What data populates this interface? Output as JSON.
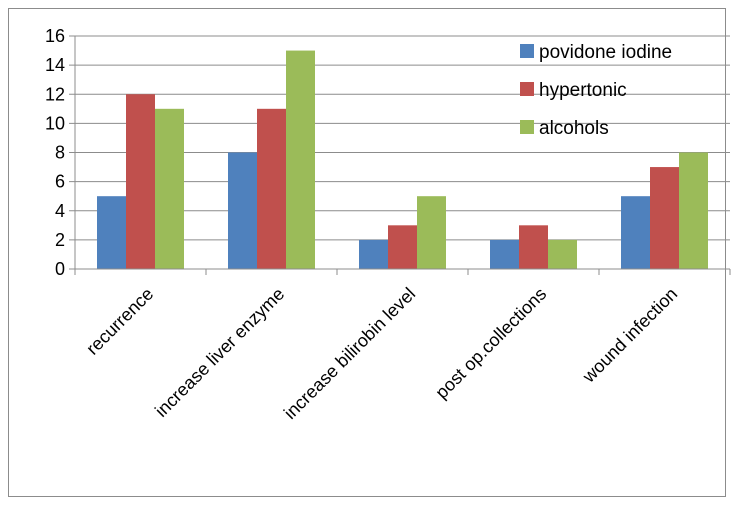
{
  "chart_data": {
    "type": "bar",
    "categories": [
      "recurrence",
      "increase liver enzyme",
      "increase bilirobin level",
      "post op.collections",
      "wound infection"
    ],
    "series": [
      {
        "name": "povidone iodine",
        "values": [
          5,
          8,
          2,
          2,
          5
        ],
        "color": "#4f81bd"
      },
      {
        "name": "hypertonic",
        "values": [
          12,
          11,
          3,
          3,
          7
        ],
        "color": "#c0504d"
      },
      {
        "name": "alcohols",
        "values": [
          11,
          15,
          5,
          2,
          8
        ],
        "color": "#9bbb59"
      }
    ],
    "ylim": [
      0,
      16
    ],
    "yticks": [
      0,
      2,
      4,
      6,
      8,
      10,
      12,
      14,
      16
    ],
    "grid": true,
    "legend": "top-right",
    "title": "",
    "xlabel": "",
    "ylabel": ""
  }
}
